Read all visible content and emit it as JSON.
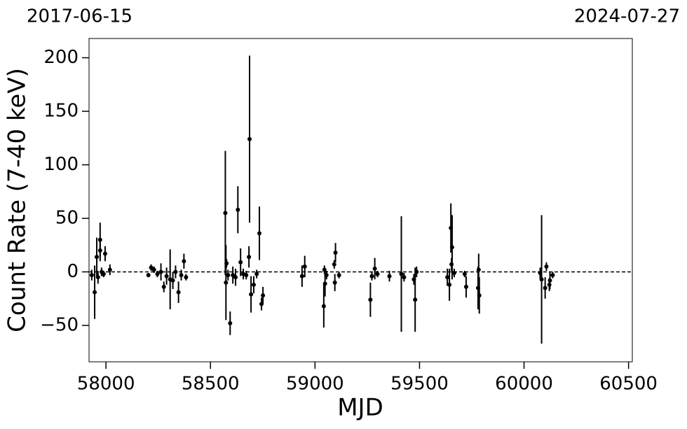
{
  "chart_data": {
    "type": "errorbar-scatter",
    "xlabel": "MJD",
    "ylabel": "Count Rate (7-40 keV)",
    "start_date": "2017-06-15",
    "end_date": "2024-07-27",
    "xlim": [
      57919,
      60518
    ],
    "ylim": [
      -84,
      218
    ],
    "xticks": [
      58000,
      58500,
      59000,
      59500,
      60000,
      60500
    ],
    "yticks": [
      {
        "value": -50,
        "label": "−50"
      },
      0,
      50,
      100,
      150,
      200
    ],
    "hline": 0,
    "color": "#000000",
    "x": [
      57932,
      57946,
      57956,
      57962,
      57972,
      57972,
      57979,
      57989,
      57996,
      58019,
      58203,
      58216,
      58230,
      58246,
      58263,
      58277,
      58290,
      58307,
      58320,
      58333,
      58347,
      58360,
      58373,
      58383,
      58571,
      58574,
      58577,
      58584,
      58594,
      58607,
      58620,
      58631,
      58644,
      58657,
      58671,
      58684,
      58687,
      58694,
      58707,
      58721,
      58734,
      58744,
      58751,
      58938,
      58951,
      59042,
      59045,
      59048,
      59055,
      59092,
      59095,
      59098,
      59115,
      59265,
      59272,
      59286,
      59299,
      59356,
      59413,
      59426,
      59473,
      59479,
      59486,
      59633,
      59643,
      59650,
      59653,
      59656,
      59666,
      59716,
      59723,
      59780,
      59783,
      59786,
      60077,
      60084,
      60101,
      60107,
      60121,
      60124,
      60137
    ],
    "values": [
      -3,
      -19,
      14,
      -5,
      20,
      30,
      0,
      -2,
      17,
      2,
      -3,
      4,
      2,
      -2,
      0,
      -14,
      -4,
      -7,
      -8,
      0,
      -19,
      -3,
      10,
      -5,
      55,
      -10,
      8,
      -3,
      -48,
      -3,
      -5,
      58,
      9,
      -2,
      -3,
      14,
      124,
      -21,
      -12,
      -2,
      36,
      -30,
      -22,
      -4,
      5,
      -32,
      2,
      -11,
      -3,
      7,
      -10,
      18,
      -3,
      -26,
      -4,
      3,
      -2,
      -4,
      -2,
      -5,
      -7,
      -26,
      0,
      -5,
      -12,
      41,
      7,
      23,
      -1,
      -2,
      -14,
      -15,
      2,
      -22,
      -1,
      -7,
      -15,
      5,
      -12,
      -8,
      -3
    ],
    "errors": [
      5,
      25,
      18,
      6,
      10,
      16,
      4,
      3,
      7,
      5,
      2,
      3,
      3,
      3,
      8,
      5,
      8,
      28,
      8,
      6,
      10,
      5,
      7,
      3,
      58,
      35,
      4,
      5,
      11,
      8,
      8,
      22,
      13,
      5,
      4,
      10,
      78,
      17,
      8,
      4,
      25,
      6,
      8,
      10,
      10,
      20,
      4,
      12,
      4,
      4,
      8,
      9,
      3,
      16,
      4,
      10,
      3,
      5,
      54,
      4,
      5,
      30,
      5,
      8,
      15,
      23,
      6,
      30,
      4,
      3,
      10,
      20,
      15,
      17,
      5,
      60,
      10,
      4,
      6,
      8,
      3
    ]
  }
}
